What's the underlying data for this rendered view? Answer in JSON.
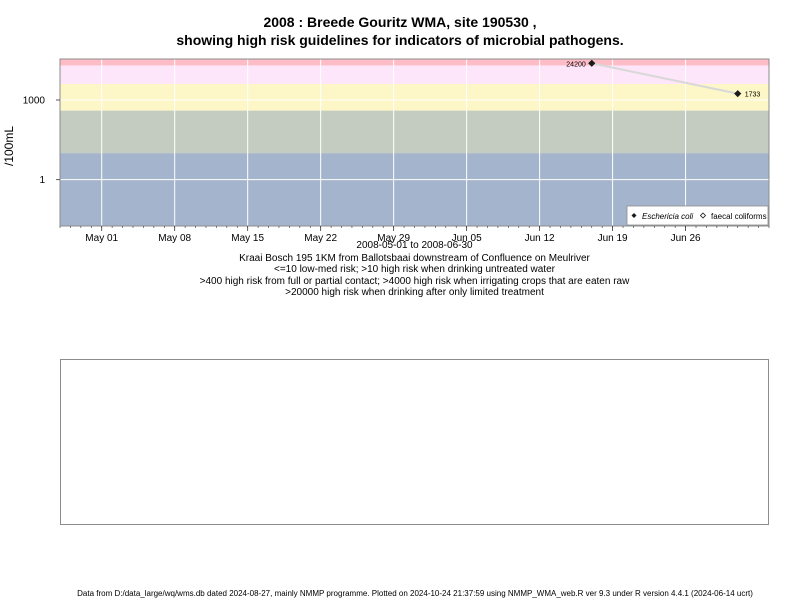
{
  "title_line1": "2008 : Breede Gouritz WMA, site 190530 ,",
  "title_line2": "showing high risk guidelines for indicators of microbial pathogens.",
  "caption": {
    "date_range": "2008-05-01 to 2008-06-30",
    "site": "Kraai Bosch 195 1KM from Ballotsbaai downstream of Confluence on Meulriver",
    "guideline1": "<=10 low-med risk; >10 high risk when drinking untreated water",
    "guideline2": ">400 high risk from full or partial contact; >4000 high risk when irrigating crops that are eaten raw",
    "guideline3": ">20000 high risk when drinking after only limited treatment"
  },
  "footer": "Data from D:/data_large/wq/wms.db dated 2024-08-27, mainly NMMP programme. Plotted on 2024-10-24 21:37:59 using NMMP_WMA_web.R ver 9.3 under R version 4.4.1 (2024-06-14 ucrt)",
  "colors": {
    "band_low": "#a4b4cc",
    "band_mid": "#c4ccc2",
    "band_contact": "#fdf6c6",
    "band_irrigation": "#fde5fa",
    "band_drinking": "#fdbcc6",
    "line": "#d8d8d8",
    "point": "#1a1a1a",
    "grid": "#ffffff"
  },
  "chart_data": {
    "type": "line",
    "xlabel": "",
    "ylabel": "/100mL",
    "y_scale": "log10",
    "xlim": [
      "2008-04-27",
      "2008-07-04"
    ],
    "ylim": [
      0.018,
      35000
    ],
    "x_ticks": [
      {
        "date": "2008-05-01",
        "label": "May 01"
      },
      {
        "date": "2008-05-08",
        "label": "May 08"
      },
      {
        "date": "2008-05-15",
        "label": "May 15"
      },
      {
        "date": "2008-05-22",
        "label": "May 22"
      },
      {
        "date": "2008-05-29",
        "label": "May 29"
      },
      {
        "date": "2008-06-05",
        "label": "Jun 05"
      },
      {
        "date": "2008-06-12",
        "label": "Jun 12"
      },
      {
        "date": "2008-06-19",
        "label": "Jun 19"
      },
      {
        "date": "2008-06-26",
        "label": "Jun 26"
      }
    ],
    "y_ticks": [
      {
        "value": 1,
        "label": "1"
      },
      {
        "value": 1000,
        "label": "1000"
      }
    ],
    "grid": true,
    "guideline_bands": [
      {
        "from": 0.018,
        "to": 10,
        "color_key": "band_low"
      },
      {
        "from": 10,
        "to": 400,
        "color_key": "band_mid"
      },
      {
        "from": 400,
        "to": 4000,
        "color_key": "band_contact"
      },
      {
        "from": 4000,
        "to": 20000,
        "color_key": "band_irrigation"
      },
      {
        "from": 20000,
        "to": 35000,
        "color_key": "band_drinking"
      }
    ],
    "series": [
      {
        "name": "Eschericia coli",
        "marker": "filled-diamond",
        "points": [
          {
            "x": "2008-06-17",
            "y": 24200,
            "label": "24200"
          },
          {
            "x": "2008-07-01",
            "y": 1733,
            "label": "1733"
          }
        ]
      },
      {
        "name": "faecal coliforms",
        "marker": "open-diamond",
        "points": []
      }
    ],
    "legend_position": "bottom-right"
  }
}
